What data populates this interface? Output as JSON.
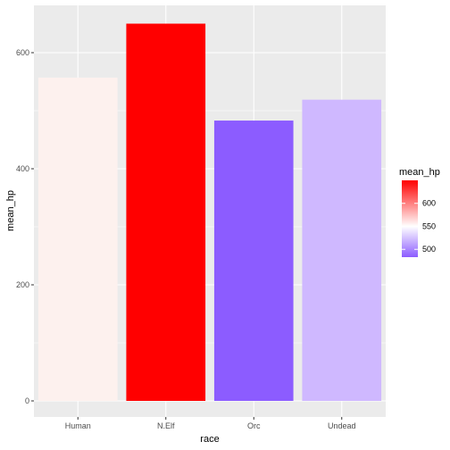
{
  "chart_data": {
    "type": "bar",
    "categories": [
      "Human",
      "N.Elf",
      "Orc",
      "Undead"
    ],
    "values": [
      557,
      650,
      483,
      519
    ],
    "xlabel": "race",
    "ylabel": "mean_hp",
    "ylim": [
      0,
      650
    ],
    "y_ticks": [
      0,
      200,
      400,
      600
    ],
    "grid": true,
    "legend": {
      "title": "mean_hp",
      "position": "right",
      "type": "colorbar",
      "ticks": [
        500,
        550,
        600
      ],
      "range": [
        483,
        650
      ],
      "colors": {
        "low": "#8c5cff",
        "mid": "#ffffff",
        "high": "#ff0000",
        "midpoint": 550
      }
    },
    "bar_colors": [
      "#fdf1ee",
      "#ff0000",
      "#8c5cff",
      "#cfb8ff"
    ],
    "panel_background": "#ebebeb"
  }
}
